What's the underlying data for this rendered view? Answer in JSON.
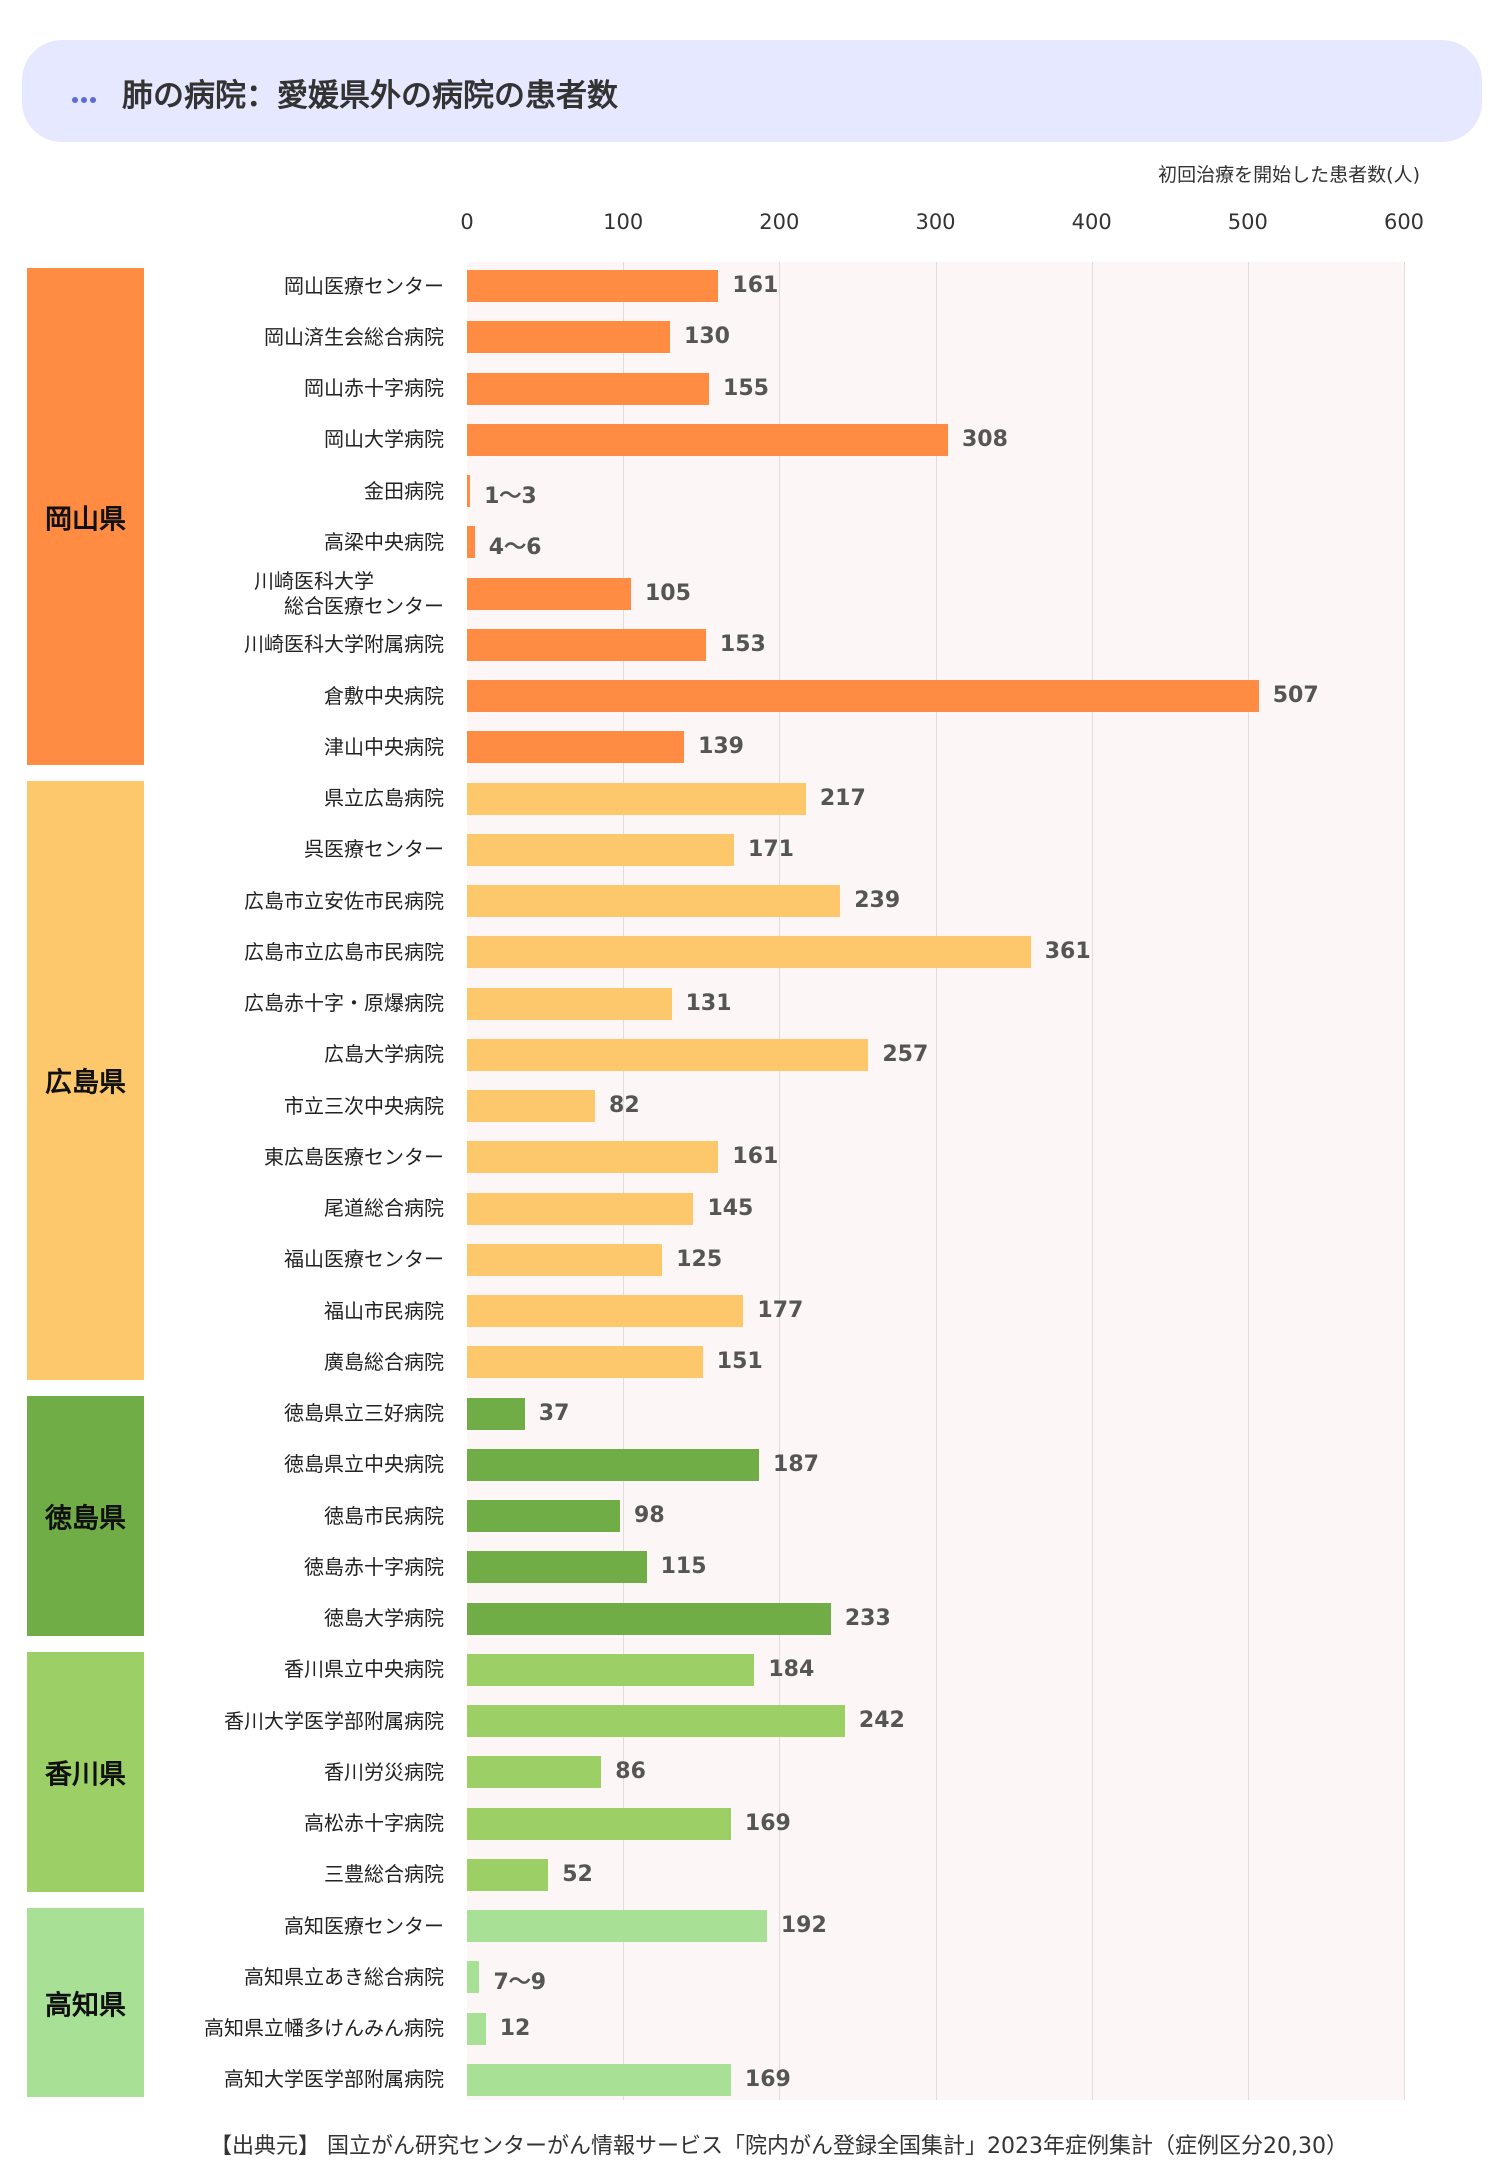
{
  "header": {
    "title": "肺の病院：愛媛県外の病院の患者数"
  },
  "unit_label": "初回治療を開始した患者数(人)",
  "source": "【出典元】 国立がん研究センターがん情報サービス「院内がん登録全国集計」2023年症例集計（症例区分20,30）",
  "chart_data": {
    "type": "bar",
    "orientation": "horizontal",
    "xlim": [
      0,
      600
    ],
    "xticks": [
      "0",
      "100",
      "200",
      "300",
      "400",
      "500",
      "600"
    ],
    "groups": [
      {
        "name": "岡山県",
        "color": "#ff8c42",
        "categories": [
          "岡山医療センター",
          "岡山済生会総合病院",
          "岡山赤十字病院",
          "岡山大学病院",
          "金田病院",
          "高梁中央病院",
          "川崎医科大学\n総合医療センター",
          "川崎医科大学附属病院",
          "倉敷中央病院",
          "津山中央病院"
        ],
        "values": [
          161,
          130,
          155,
          308,
          2,
          5,
          105,
          153,
          507,
          139
        ],
        "labels": [
          "161",
          "130",
          "155",
          "308",
          "1〜3",
          "4〜6",
          "105",
          "153",
          "507",
          "139"
        ]
      },
      {
        "name": "広島県",
        "color": "#fdc76b",
        "categories": [
          "県立広島病院",
          "呉医療センター",
          "広島市立安佐市民病院",
          "広島市立広島市民病院",
          "広島赤十字・原爆病院",
          "広島大学病院",
          "市立三次中央病院",
          "東広島医療センター",
          "尾道総合病院",
          "福山医療センター",
          "福山市民病院",
          "廣島総合病院"
        ],
        "values": [
          217,
          171,
          239,
          361,
          131,
          257,
          82,
          161,
          145,
          125,
          177,
          151
        ],
        "labels": [
          "217",
          "171",
          "239",
          "361",
          "131",
          "257",
          "82",
          "161",
          "145",
          "125",
          "177",
          "151"
        ]
      },
      {
        "name": "徳島県",
        "color": "#70ad47",
        "categories": [
          "徳島県立三好病院",
          "徳島県立中央病院",
          "徳島市民病院",
          "徳島赤十字病院",
          "徳島大学病院"
        ],
        "values": [
          37,
          187,
          98,
          115,
          233
        ],
        "labels": [
          "37",
          "187",
          "98",
          "115",
          "233"
        ]
      },
      {
        "name": "香川県",
        "color": "#9ccf66",
        "categories": [
          "香川県立中央病院",
          "香川大学医学部附属病院",
          "香川労災病院",
          "高松赤十字病院",
          "三豊総合病院"
        ],
        "values": [
          184,
          242,
          86,
          169,
          52
        ],
        "labels": [
          "184",
          "242",
          "86",
          "169",
          "52"
        ]
      },
      {
        "name": "高知県",
        "color": "#a8e196",
        "categories": [
          "高知医療センター",
          "高知県立あき総合病院",
          "高知県立幡多けんみん病院",
          "高知大学医学部附属病院"
        ],
        "values": [
          192,
          8,
          12,
          169
        ],
        "labels": [
          "192",
          "7〜9",
          "12",
          "169"
        ]
      }
    ]
  }
}
